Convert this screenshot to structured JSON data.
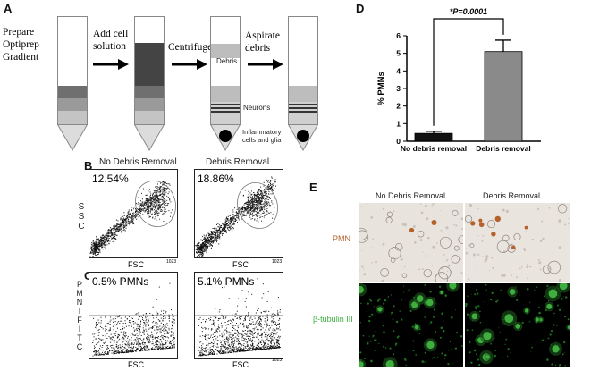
{
  "panelA": {
    "label": "A",
    "steps": {
      "prepare": [
        "Prepare",
        "Optiprep",
        "Gradient"
      ],
      "add": [
        "Add cell",
        "solution"
      ],
      "centrifuge": "Centrifuge",
      "aspirate": [
        "Aspirate",
        "debris"
      ]
    },
    "tube3_labels": {
      "debris": "Debris",
      "neurons": "Neurons",
      "inflammatory": [
        "Inflammatory",
        "cells and glia"
      ]
    }
  },
  "panelB": {
    "label": "B",
    "left_title": "No Debris Removal",
    "right_title": "Debris Removal",
    "left_pct": "12.54%",
    "right_pct": "18.86%",
    "ylabel": [
      "S",
      "S",
      "C"
    ],
    "xlabel": "FSC",
    "tick_max": "1023"
  },
  "panelC": {
    "label": "C",
    "left_pct": "0.5% PMNs",
    "right_pct": "5.1% PMNs",
    "ylabel": [
      "P",
      "M",
      "N",
      "I",
      "F",
      "I",
      "T",
      "C"
    ],
    "xlabel": "FSC",
    "tick_max": "1023"
  },
  "panelD": {
    "label": "D",
    "significance": "*P=0.0001",
    "ylabel": "% PMNs",
    "chart_data": {
      "type": "bar",
      "categories": [
        "No debris removal",
        "Debris removal"
      ],
      "values": [
        0.45,
        5.1
      ],
      "errors": [
        0.12,
        0.65
      ],
      "colors": [
        "#111111",
        "#8a8a8a"
      ],
      "title": "",
      "xlabel": "",
      "ylabel": "% PMNs",
      "ylim": [
        0,
        6
      ],
      "yticks": [
        "0",
        "1",
        "2",
        "3",
        "4",
        "5",
        "6"
      ]
    }
  },
  "panelE": {
    "label": "E",
    "left_title": "No Debris Removal",
    "right_title": "Debris Removal",
    "row1_label": "PMN",
    "row2_label": "β-tubulin III",
    "colors": {
      "pmn": "#b5622a",
      "tubulin": "#3fae3f"
    }
  }
}
